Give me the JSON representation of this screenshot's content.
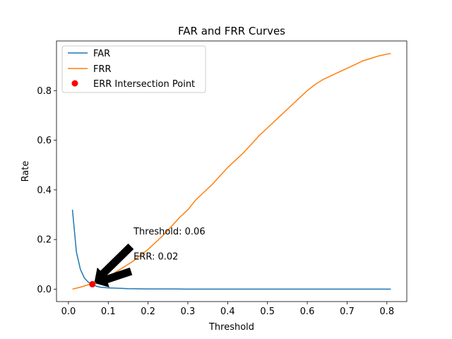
{
  "chart_data": {
    "type": "line",
    "title": "FAR and FRR Curves",
    "xlabel": "Threshold",
    "ylabel": "Rate",
    "xlim": [
      -0.03,
      0.85
    ],
    "ylim": [
      -0.05,
      1.0
    ],
    "xticks": [
      0.0,
      0.1,
      0.2,
      0.3,
      0.4,
      0.5,
      0.6,
      0.7,
      0.8
    ],
    "xtick_labels": [
      "0.0",
      "0.1",
      "0.2",
      "0.3",
      "0.4",
      "0.5",
      "0.6",
      "0.7",
      "0.8"
    ],
    "yticks": [
      0.0,
      0.2,
      0.4,
      0.6,
      0.8
    ],
    "ytick_labels": [
      "0.0",
      "0.2",
      "0.4",
      "0.6",
      "0.8"
    ],
    "grid": false,
    "legend_position": "upper-left",
    "series": [
      {
        "name": "FAR",
        "color": "#1f77b4",
        "x": [
          0.01,
          0.02,
          0.03,
          0.04,
          0.05,
          0.06,
          0.07,
          0.08,
          0.1,
          0.12,
          0.15,
          0.2,
          0.25,
          0.3,
          0.4,
          0.5,
          0.6,
          0.7,
          0.81
        ],
        "y": [
          0.32,
          0.15,
          0.08,
          0.045,
          0.028,
          0.02,
          0.012,
          0.008,
          0.005,
          0.004,
          0.002,
          0.001,
          0.001,
          0.0,
          0.0,
          0.0,
          0.0,
          0.0,
          0.0
        ]
      },
      {
        "name": "FRR",
        "color": "#ff7f0e",
        "x": [
          0.01,
          0.02,
          0.03,
          0.04,
          0.05,
          0.06,
          0.08,
          0.1,
          0.12,
          0.14,
          0.16,
          0.18,
          0.2,
          0.22,
          0.24,
          0.26,
          0.28,
          0.3,
          0.32,
          0.34,
          0.36,
          0.38,
          0.4,
          0.42,
          0.44,
          0.46,
          0.48,
          0.5,
          0.52,
          0.54,
          0.56,
          0.58,
          0.6,
          0.62,
          0.64,
          0.66,
          0.68,
          0.7,
          0.72,
          0.74,
          0.76,
          0.78,
          0.81
        ],
        "y": [
          0.0,
          0.004,
          0.008,
          0.013,
          0.018,
          0.022,
          0.035,
          0.05,
          0.07,
          0.09,
          0.11,
          0.135,
          0.16,
          0.19,
          0.22,
          0.255,
          0.29,
          0.32,
          0.36,
          0.39,
          0.42,
          0.455,
          0.49,
          0.52,
          0.55,
          0.585,
          0.62,
          0.65,
          0.68,
          0.71,
          0.74,
          0.77,
          0.8,
          0.825,
          0.845,
          0.86,
          0.875,
          0.89,
          0.905,
          0.92,
          0.93,
          0.94,
          0.95
        ]
      }
    ],
    "points": [
      {
        "name": "ERR Intersection Point",
        "color": "#ff0000",
        "x": 0.06,
        "y": 0.02
      }
    ],
    "annotations": [
      {
        "text": "Threshold: 0.06",
        "x": 0.16,
        "y": 0.22
      },
      {
        "text": "ERR: 0.02",
        "x": 0.16,
        "y": 0.12
      }
    ]
  }
}
